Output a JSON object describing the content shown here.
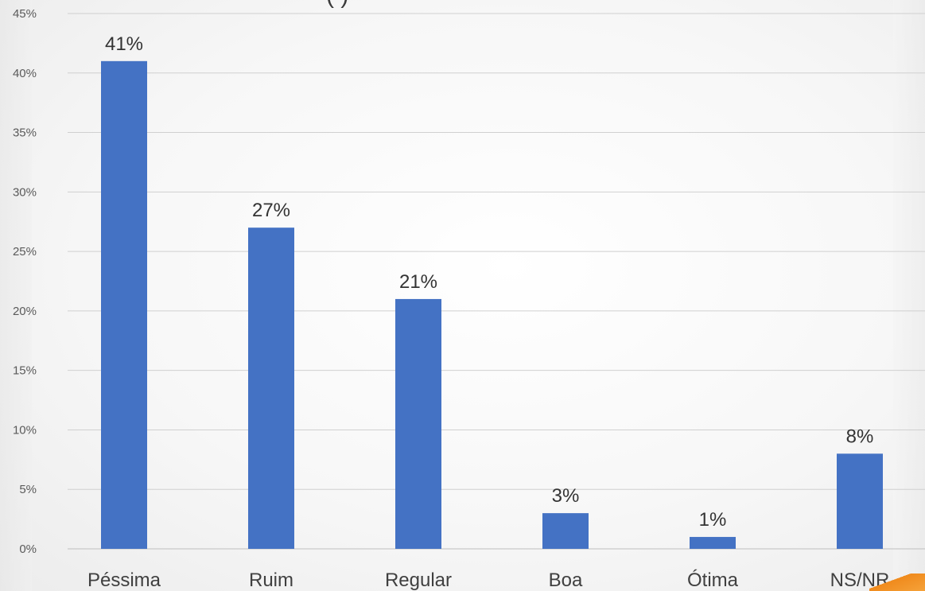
{
  "chart_data": {
    "type": "bar",
    "title_fragment": "(                                          )",
    "categories": [
      "Péssima",
      "Ruim",
      "Regular",
      "Boa",
      "Ótima",
      "NS/NR"
    ],
    "values": [
      41,
      27,
      21,
      3,
      1,
      8
    ],
    "data_labels": [
      "41%",
      "27%",
      "21%",
      "3%",
      "1%",
      "8%"
    ],
    "ylim": [
      0,
      45
    ],
    "y_ticks": [
      0,
      5,
      10,
      15,
      20,
      25,
      30,
      35,
      40,
      45
    ],
    "y_tick_labels": [
      "0%",
      "5%",
      "10%",
      "15%",
      "20%",
      "25%",
      "30%",
      "35%",
      "40%",
      "45%"
    ],
    "grid": true,
    "legend": "none",
    "bar_color": "#4472C4",
    "accent_color": "#F08A1C"
  }
}
